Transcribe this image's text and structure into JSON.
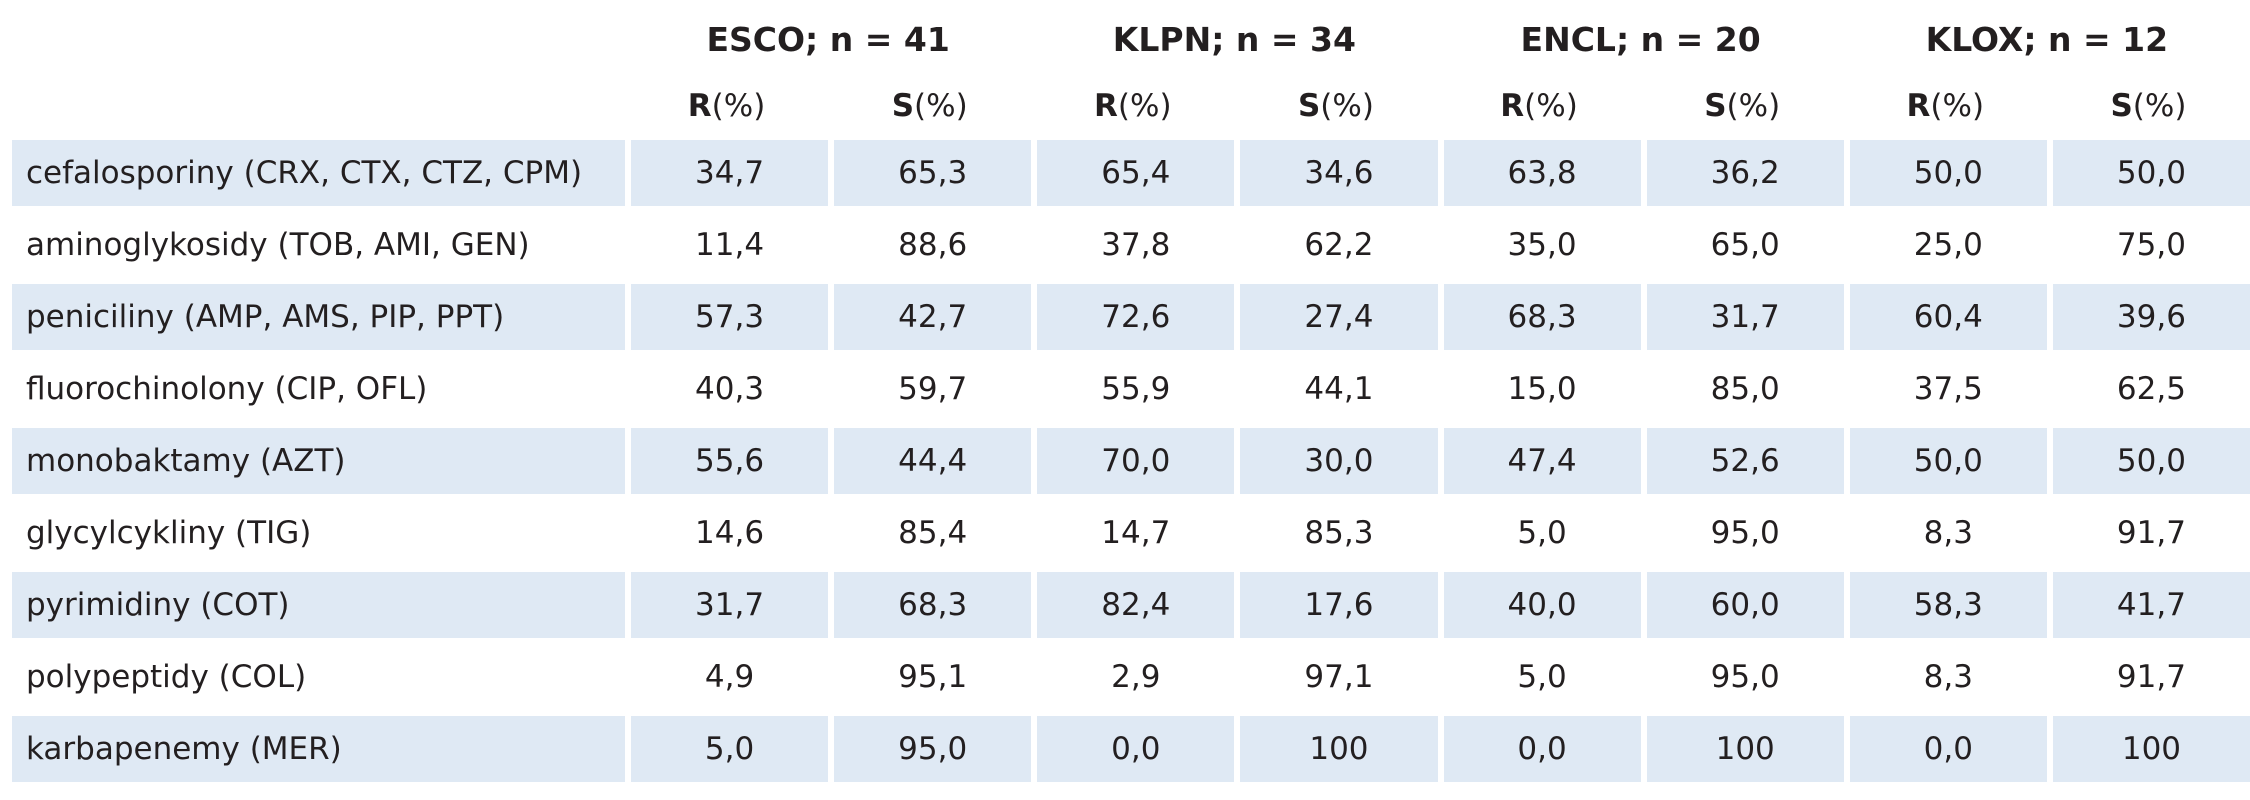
{
  "groups": [
    {
      "name": "ESCO; n = 41"
    },
    {
      "name": "KLPN; n = 34"
    },
    {
      "name": "ENCL; n = 20"
    },
    {
      "name": "KLOX; n = 12"
    }
  ],
  "subheaders": {
    "r_letter": "R",
    "s_letter": "S",
    "unit": " (%)"
  },
  "rows": [
    {
      "label": "cefalosporiny (CRX, CTX, CTZ, CPM)",
      "values": [
        "34,7",
        "65,3",
        "65,4",
        "34,6",
        "63,8",
        "36,2",
        "50,0",
        "50,0"
      ]
    },
    {
      "label": "aminoglykosidy (TOB, AMI, GEN)",
      "values": [
        "11,4",
        "88,6",
        "37,8",
        "62,2",
        "35,0",
        "65,0",
        "25,0",
        "75,0"
      ]
    },
    {
      "label": "peniciliny (AMP, AMS, PIP, PPT)",
      "values": [
        "57,3",
        "42,7",
        "72,6",
        "27,4",
        "68,3",
        "31,7",
        "60,4",
        "39,6"
      ]
    },
    {
      "label": "fluorochinolony (CIP, OFL)",
      "values": [
        "40,3",
        "59,7",
        "55,9",
        "44,1",
        "15,0",
        "85,0",
        "37,5",
        "62,5"
      ]
    },
    {
      "label": "monobaktamy (AZT)",
      "values": [
        "55,6",
        "44,4",
        "70,0",
        "30,0",
        "47,4",
        "52,6",
        "50,0",
        "50,0"
      ]
    },
    {
      "label": "glycylcykliny (TIG)",
      "values": [
        "14,6",
        "85,4",
        "14,7",
        "85,3",
        "5,0",
        "95,0",
        "8,3",
        "91,7"
      ]
    },
    {
      "label": "pyrimidiny (COT)",
      "values": [
        "31,7",
        "68,3",
        "82,4",
        "17,6",
        "40,0",
        "60,0",
        "58,3",
        "41,7"
      ]
    },
    {
      "label": "polypeptidy (COL)",
      "values": [
        "4,9",
        "95,1",
        "2,9",
        "97,1",
        "5,0",
        "95,0",
        "8,3",
        "91,7"
      ]
    },
    {
      "label": "karbapenemy (MER)",
      "values": [
        "5,0",
        "95,0",
        "0,0",
        "100",
        "0,0",
        "100",
        "0,0",
        "100"
      ]
    }
  ],
  "colors": {
    "row_shade": "#dfe9f4",
    "text": "#231f20"
  }
}
